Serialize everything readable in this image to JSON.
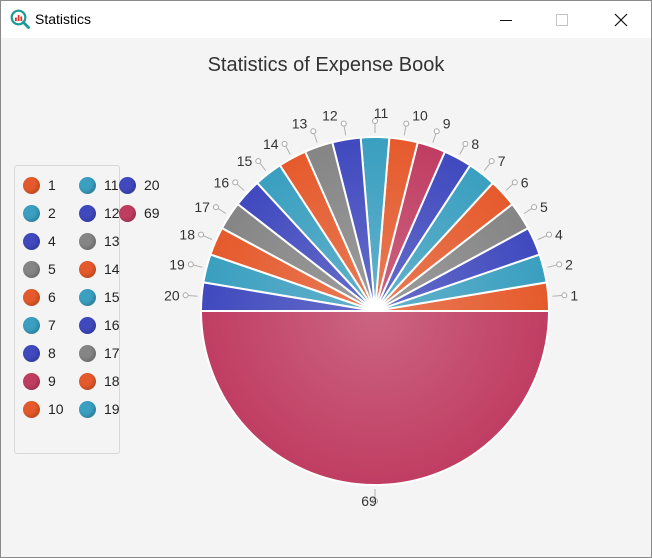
{
  "window": {
    "title": "Statistics",
    "icon": "statistics-magnifier-icon",
    "controls": [
      "minimize-icon",
      "maximize-icon",
      "close-icon"
    ]
  },
  "chart_data": {
    "type": "pie",
    "title": "Statistics of Expense Book",
    "start_angle_deg": 0,
    "direction": "counterclockwise",
    "legend_placement": "left",
    "categories": [
      "1",
      "2",
      "4",
      "5",
      "6",
      "7",
      "8",
      "9",
      "10",
      "11",
      "12",
      "13",
      "14",
      "15",
      "16",
      "17",
      "18",
      "19",
      "20",
      "69"
    ],
    "values": [
      1,
      1,
      1,
      1,
      1,
      1,
      1,
      1,
      1,
      1,
      1,
      1,
      1,
      1,
      1,
      1,
      1,
      1,
      1,
      19
    ],
    "slice_labels": [
      "1",
      "2",
      "4",
      "5",
      "6",
      "7",
      "8",
      "9",
      "10",
      "11",
      "12",
      "13",
      "14",
      "15",
      "16",
      "17",
      "18",
      "19",
      "20",
      "69"
    ],
    "colors": [
      "#e55a2c",
      "#3a9fc0",
      "#4049be",
      "#858585",
      "#e55a2c",
      "#3a9fc0",
      "#4049be",
      "#c03d62",
      "#e55a2c",
      "#3a9fc0",
      "#4049be",
      "#858585",
      "#e55a2c",
      "#3a9fc0",
      "#4049be",
      "#858585",
      "#e55a2c",
      "#3a9fc0",
      "#4049be",
      "#c03d62"
    ]
  },
  "legend": [
    {
      "label": "1",
      "color": "#e55a2c"
    },
    {
      "label": "2",
      "color": "#3a9fc0"
    },
    {
      "label": "4",
      "color": "#4049be"
    },
    {
      "label": "5",
      "color": "#858585"
    },
    {
      "label": "6",
      "color": "#e55a2c"
    },
    {
      "label": "7",
      "color": "#3a9fc0"
    },
    {
      "label": "8",
      "color": "#4049be"
    },
    {
      "label": "9",
      "color": "#c03d62"
    },
    {
      "label": "10",
      "color": "#e55a2c"
    },
    {
      "label": "11",
      "color": "#3a9fc0"
    },
    {
      "label": "12",
      "color": "#4049be"
    },
    {
      "label": "13",
      "color": "#858585"
    },
    {
      "label": "14",
      "color": "#e55a2c"
    },
    {
      "label": "15",
      "color": "#3a9fc0"
    },
    {
      "label": "16",
      "color": "#4049be"
    },
    {
      "label": "17",
      "color": "#858585"
    },
    {
      "label": "18",
      "color": "#e55a2c"
    },
    {
      "label": "19",
      "color": "#3a9fc0"
    },
    {
      "label": "20",
      "color": "#4049be"
    },
    {
      "label": "69",
      "color": "#c03d62"
    }
  ]
}
